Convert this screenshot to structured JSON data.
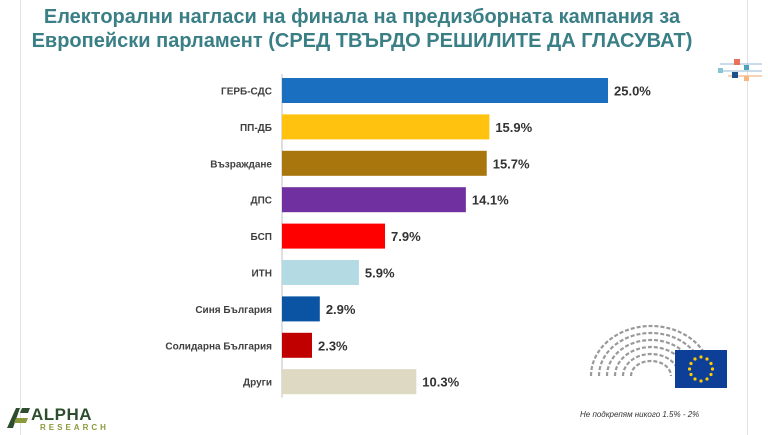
{
  "title_line1": "Електорални нагласи на финала на предизборната кампания за",
  "title_line2": "Европейски парламент (СРЕД ТВЪРДО РЕШИЛИТЕ ДА ГЛАСУВАТ)",
  "footnote": "Не подкрепям никого 1.5% - 2%",
  "logo": {
    "word": "ALPHA",
    "sub": "RESEARCH"
  },
  "chart_data": {
    "type": "bar",
    "orientation": "horizontal",
    "categories": [
      "ГЕРБ-СДС",
      "ПП-ДБ",
      "Възраждане",
      "ДПС",
      "БСП",
      "ИТН",
      "Синя България",
      "Солидарна България",
      "Други"
    ],
    "values": [
      25.0,
      15.9,
      15.7,
      14.1,
      7.9,
      5.9,
      2.9,
      2.3,
      10.3
    ],
    "labels": [
      "25.0%",
      "15.9%",
      "15.7%",
      "14.1%",
      "7.9%",
      "5.9%",
      "2.9%",
      "2.3%",
      "10.3%"
    ],
    "colors": [
      "#1a6fc0",
      "#ffc20e",
      "#a8760c",
      "#7030a0",
      "#ff0000",
      "#b4dbe4",
      "#0b54a3",
      "#c00000",
      "#ddd9c3"
    ],
    "unit": "%",
    "grid": false,
    "legend": "none"
  }
}
